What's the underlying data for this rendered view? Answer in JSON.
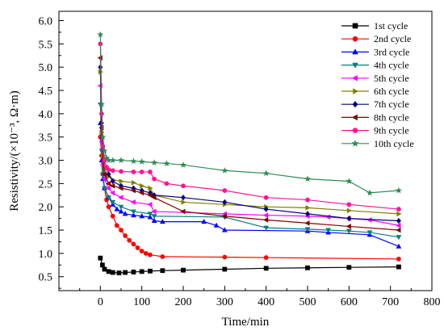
{
  "chart_data": {
    "type": "line",
    "title": "",
    "xlabel": "Time/min",
    "ylabel": "Resistivity/(×10⁻³, Ω·m)",
    "xlim": [
      -100,
      800
    ],
    "ylim": [
      0.2,
      6.2
    ],
    "xticks": [
      0,
      100,
      200,
      300,
      400,
      500,
      600,
      700,
      800
    ],
    "yticks": [
      0.5,
      1.0,
      1.5,
      2.0,
      2.5,
      3.0,
      3.5,
      4.0,
      4.5,
      5.0,
      5.5,
      6.0
    ],
    "xtick_labels": [
      "0",
      "100",
      "200",
      "300",
      "400",
      "500",
      "600",
      "700",
      "800"
    ],
    "ytick_labels": [
      "0.5",
      "1.0",
      "1.5",
      "2.0",
      "2.5",
      "3.0",
      "3.5",
      "4.0",
      "4.5",
      "5.0",
      "5.5",
      "6.0"
    ],
    "grid": false,
    "legend_position": "top-right",
    "series": [
      {
        "name": "1st cycle",
        "color": "#000000",
        "marker": "square",
        "x": [
          0,
          5,
          10,
          20,
          30,
          45,
          60,
          80,
          100,
          120,
          150,
          200,
          300,
          400,
          500,
          600,
          720
        ],
        "y": [
          0.9,
          0.75,
          0.66,
          0.61,
          0.59,
          0.58,
          0.59,
          0.6,
          0.61,
          0.62,
          0.63,
          0.64,
          0.66,
          0.68,
          0.69,
          0.7,
          0.71
        ]
      },
      {
        "name": "2nd cycle",
        "color": "#ff0000",
        "marker": "circle",
        "x": [
          0,
          3,
          6,
          10,
          15,
          20,
          30,
          40,
          50,
          60,
          70,
          80,
          90,
          100,
          110,
          120,
          150,
          300,
          400,
          720
        ],
        "y": [
          3.5,
          3.1,
          2.7,
          2.4,
          2.15,
          2.0,
          1.8,
          1.6,
          1.5,
          1.38,
          1.28,
          1.2,
          1.12,
          1.05,
          1.0,
          0.97,
          0.93,
          0.92,
          0.91,
          0.88
        ]
      },
      {
        "name": "3rd cycle",
        "color": "#0000ff",
        "marker": "triangle-up",
        "x": [
          0,
          3,
          6,
          10,
          20,
          30,
          40,
          50,
          60,
          80,
          100,
          120,
          130,
          150,
          250,
          280,
          300,
          500,
          550,
          650,
          720
        ],
        "y": [
          3.8,
          3.0,
          2.6,
          2.4,
          2.2,
          2.05,
          1.95,
          1.9,
          1.85,
          1.82,
          1.8,
          1.78,
          1.7,
          1.68,
          1.68,
          1.6,
          1.5,
          1.48,
          1.45,
          1.4,
          1.15
        ]
      },
      {
        "name": "4th cycle",
        "color": "#008080",
        "marker": "triangle-down",
        "x": [
          0,
          3,
          6,
          10,
          20,
          30,
          50,
          80,
          120,
          130,
          300,
          400,
          500,
          550,
          600,
          650,
          720
        ],
        "y": [
          4.2,
          3.2,
          2.7,
          2.4,
          2.2,
          2.1,
          2.0,
          1.9,
          1.85,
          1.8,
          1.78,
          1.55,
          1.52,
          1.5,
          1.48,
          1.45,
          1.35
        ]
      },
      {
        "name": "5th cycle",
        "color": "#ff00ff",
        "marker": "triangle-left",
        "x": [
          0,
          3,
          6,
          10,
          20,
          30,
          50,
          80,
          120,
          130,
          300,
          400,
          500,
          550,
          600,
          650,
          720
        ],
        "y": [
          4.6,
          3.4,
          2.9,
          2.6,
          2.4,
          2.3,
          2.2,
          2.1,
          2.05,
          1.9,
          1.85,
          1.82,
          1.8,
          1.78,
          1.75,
          1.72,
          1.6
        ]
      },
      {
        "name": "6th cycle",
        "color": "#808000",
        "marker": "triangle-right",
        "x": [
          0,
          3,
          6,
          10,
          20,
          30,
          50,
          80,
          100,
          120,
          130,
          200,
          300,
          400,
          500,
          600,
          720
        ],
        "y": [
          4.9,
          3.6,
          3.1,
          2.8,
          2.65,
          2.58,
          2.55,
          2.52,
          2.45,
          2.4,
          2.25,
          2.1,
          2.05,
          2.0,
          1.98,
          1.92,
          1.85
        ]
      },
      {
        "name": "7th cycle",
        "color": "#000080",
        "marker": "diamond",
        "x": [
          0,
          3,
          6,
          10,
          20,
          30,
          50,
          80,
          100,
          120,
          130,
          200,
          300,
          400,
          500,
          600,
          720
        ],
        "y": [
          5.0,
          3.8,
          3.3,
          3.0,
          2.7,
          2.55,
          2.45,
          2.4,
          2.35,
          2.3,
          2.25,
          2.2,
          2.1,
          1.95,
          1.85,
          1.75,
          1.7
        ]
      },
      {
        "name": "8th cycle",
        "color": "#800000",
        "marker": "triangle-left",
        "x": [
          0,
          3,
          6,
          10,
          20,
          30,
          50,
          80,
          100,
          120,
          130,
          200,
          300,
          400,
          500,
          600,
          720
        ],
        "y": [
          5.2,
          3.7,
          3.0,
          2.7,
          2.5,
          2.45,
          2.4,
          2.35,
          2.3,
          2.25,
          2.2,
          1.9,
          1.8,
          1.72,
          1.65,
          1.58,
          1.5
        ]
      },
      {
        "name": "9th cycle",
        "color": "#ff1493",
        "marker": "circle",
        "x": [
          0,
          3,
          6,
          10,
          15,
          20,
          30,
          50,
          80,
          100,
          120,
          130,
          160,
          200,
          300,
          400,
          500,
          600,
          720
        ],
        "y": [
          5.5,
          4.0,
          3.3,
          3.0,
          2.85,
          2.8,
          2.78,
          2.76,
          2.75,
          2.75,
          2.75,
          2.6,
          2.5,
          2.45,
          2.35,
          2.2,
          2.15,
          2.05,
          1.95
        ]
      },
      {
        "name": "10th cycle",
        "color": "#2e8b57",
        "marker": "star",
        "x": [
          0,
          3,
          6,
          10,
          15,
          20,
          30,
          50,
          80,
          100,
          130,
          160,
          200,
          300,
          400,
          500,
          600,
          650,
          720
        ],
        "y": [
          5.7,
          4.2,
          3.5,
          3.2,
          3.05,
          3.0,
          3.0,
          3.0,
          2.98,
          2.97,
          2.95,
          2.93,
          2.9,
          2.78,
          2.72,
          2.6,
          2.55,
          2.3,
          2.35
        ]
      }
    ]
  }
}
